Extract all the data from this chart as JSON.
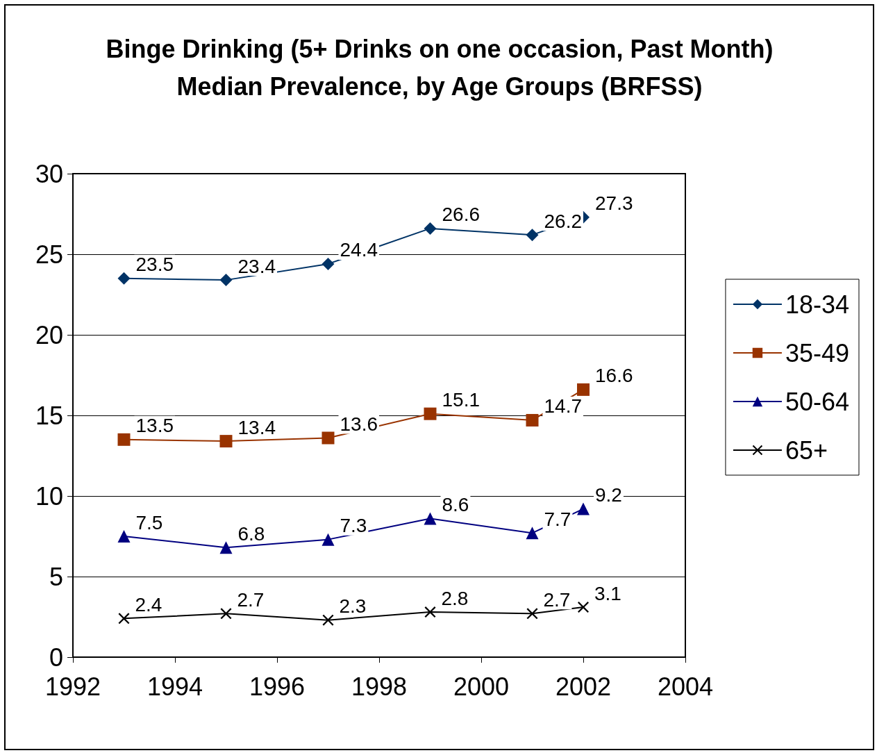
{
  "chart_data": {
    "type": "line",
    "title": "Binge Drinking (5+ Drinks on one occasion, Past Month)\nMedian Prevalence, by Age Groups (BRFSS)",
    "x": [
      1993,
      1995,
      1997,
      1999,
      2001,
      2002
    ],
    "series": [
      {
        "name": "18-34",
        "color": "#003366",
        "marker": "diamond",
        "values": [
          23.5,
          23.4,
          24.4,
          26.6,
          26.2,
          27.3
        ]
      },
      {
        "name": "35-49",
        "color": "#993300",
        "marker": "square",
        "values": [
          13.5,
          13.4,
          13.6,
          15.1,
          14.7,
          16.6
        ]
      },
      {
        "name": "50-64",
        "color": "#000080",
        "marker": "triangle",
        "values": [
          7.5,
          6.8,
          7.3,
          8.6,
          7.7,
          9.2
        ]
      },
      {
        "name": "65+",
        "color": "#000000",
        "marker": "cross",
        "values": [
          2.4,
          2.7,
          2.3,
          2.8,
          2.7,
          3.1
        ]
      }
    ],
    "xlim": [
      1992,
      2004
    ],
    "xticks": [
      1992,
      1994,
      1996,
      1998,
      2000,
      2002,
      2004
    ],
    "ylim": [
      0,
      30
    ],
    "yticks": [
      0,
      5,
      10,
      15,
      20,
      25,
      30
    ],
    "grid": "y",
    "legend": "right",
    "data_labels": true,
    "line_style": "solid"
  }
}
